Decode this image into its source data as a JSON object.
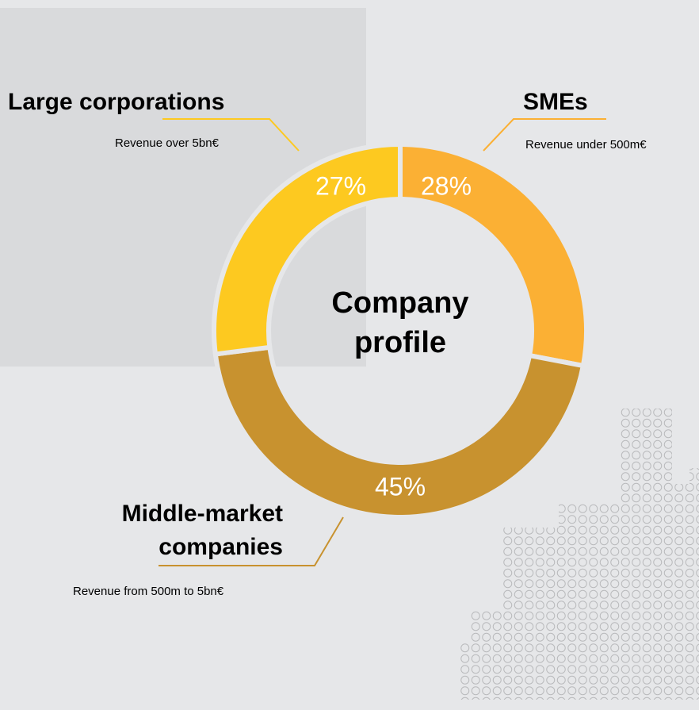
{
  "chart_data": {
    "type": "pie",
    "donut": true,
    "center_label": "Company profile",
    "categories": [
      "SMEs",
      "Middle-market companies",
      "Large corporations"
    ],
    "values": [
      28,
      45,
      27
    ],
    "value_labels": [
      "28%",
      "45%",
      "27%"
    ],
    "descriptions": [
      "Revenue under 500m€",
      "Revenue from 500m to 5bn€",
      "Revenue over 5bn€"
    ],
    "colors": [
      "#fbb034",
      "#c8922f",
      "#fdc920"
    ]
  }
}
